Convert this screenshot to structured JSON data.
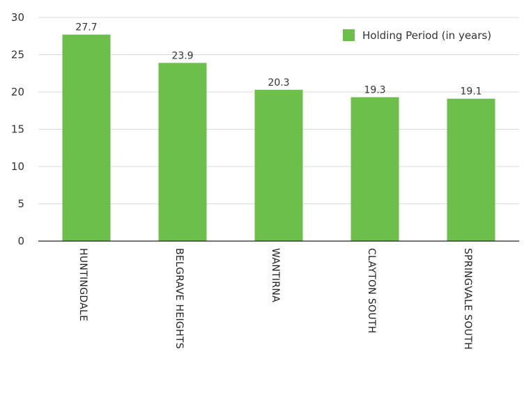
{
  "chart_data": {
    "type": "bar",
    "categories": [
      "HUNTINGDALE",
      "BELGRAVE HEIGHTS",
      "WANTIRNA",
      "CLAYTON SOUTH",
      "SPRINGVALE SOUTH"
    ],
    "series": [
      {
        "name": "Holding Period (in years)",
        "values": [
          27.7,
          23.9,
          20.3,
          19.3,
          19.1
        ],
        "color": "#6dbf4b"
      }
    ],
    "value_labels": [
      "27.7",
      "23.9",
      "20.3",
      "19.3",
      "19.1"
    ],
    "ylim": [
      0,
      30
    ],
    "yticks": [
      0,
      5,
      10,
      15,
      20,
      25,
      30
    ],
    "grid": true,
    "legend_position": "top-right",
    "category_label_orientation": "vertical"
  }
}
